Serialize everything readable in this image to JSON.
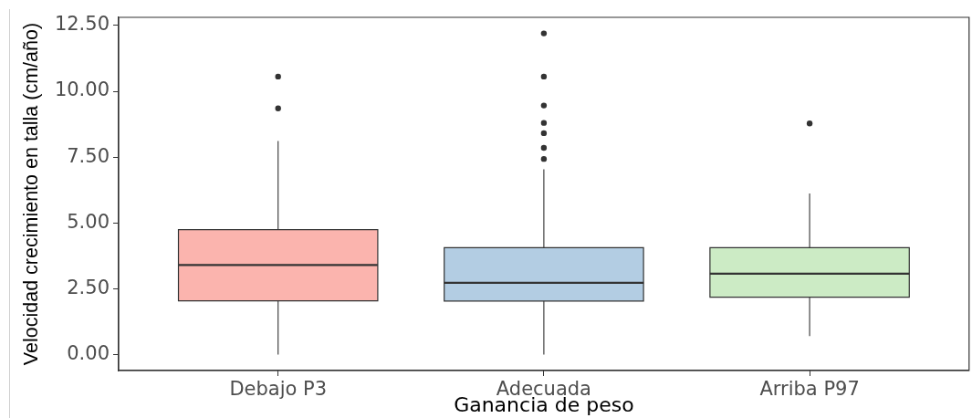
{
  "chart_data": {
    "type": "box",
    "xlabel": "Ganancia de peso",
    "ylabel": "Velocidad crecimiento en talla (cm/año)",
    "categories": [
      "Debajo P3",
      "Adecuada",
      "Arriba P97"
    ],
    "colors": [
      "#fbb4ae",
      "#b3cde3",
      "#ccebc5"
    ],
    "boxes": [
      {
        "low": 0,
        "q1": 2.04,
        "median": 3.4,
        "q3": 4.74,
        "high": 8.11,
        "outliers": [
          10.56,
          9.35
        ]
      },
      {
        "low": 0,
        "q1": 2.03,
        "median": 2.72,
        "q3": 4.06,
        "high": 7.04,
        "outliers": [
          12.2,
          10.56,
          9.46,
          8.8,
          8.41,
          7.85,
          7.43
        ]
      },
      {
        "low": 0.7,
        "q1": 2.18,
        "median": 3.07,
        "q3": 4.06,
        "high": 6.12,
        "outliers": [
          8.78
        ]
      }
    ],
    "ylim": [
      -0.61,
      12.81
    ],
    "yticks": [
      {
        "value": 0,
        "label": "0.00"
      },
      {
        "value": 2.5,
        "label": "2.50"
      },
      {
        "value": 5,
        "label": "5.00"
      },
      {
        "value": 7.5,
        "label": "7.50"
      },
      {
        "value": 10,
        "label": "10.00"
      },
      {
        "value": 12.5,
        "label": "12.50"
      }
    ]
  }
}
